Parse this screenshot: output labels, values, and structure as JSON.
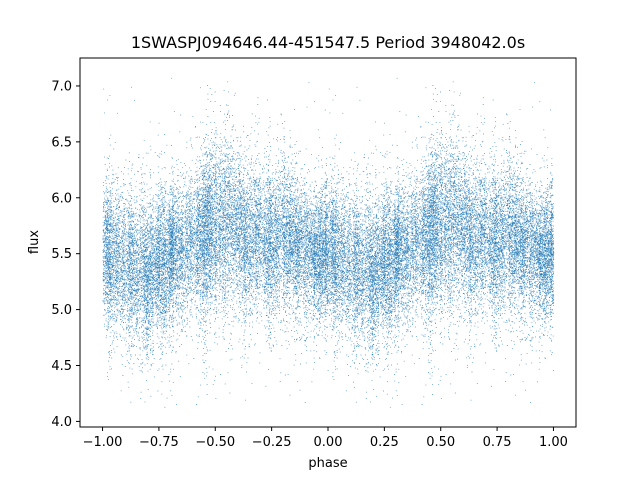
{
  "chart_data": {
    "type": "scatter",
    "title": "1SWASPJ094646.44-451547.5 Period 3948042.0s",
    "xlabel": "phase",
    "ylabel": "flux",
    "xlim": [
      -1.1,
      1.1
    ],
    "ylim": [
      3.95,
      7.25
    ],
    "x_ticks": [
      -1.0,
      -0.75,
      -0.5,
      -0.25,
      0.0,
      0.25,
      0.5,
      0.75,
      1.0
    ],
    "x_tick_labels": [
      "−1.00",
      "−0.75",
      "−0.50",
      "−0.25",
      "0.00",
      "0.25",
      "0.50",
      "0.75",
      "1.00"
    ],
    "y_ticks": [
      4.0,
      4.5,
      5.0,
      5.5,
      6.0,
      6.5,
      7.0
    ],
    "y_tick_labels": [
      "4.0",
      "4.5",
      "5.0",
      "5.5",
      "6.0",
      "6.5",
      "7.0"
    ],
    "grid": false,
    "marker_color": "#1f77b4",
    "phase_range": [
      -1.0,
      1.0
    ],
    "flux_profile": {
      "phase": [
        0.0,
        0.1,
        0.2,
        0.3,
        0.4,
        0.5,
        0.55,
        0.6,
        0.7,
        0.8,
        0.9,
        1.0
      ],
      "median_flux": [
        5.55,
        5.4,
        5.35,
        5.45,
        5.6,
        5.75,
        5.78,
        5.7,
        5.6,
        5.65,
        5.55,
        5.5
      ],
      "spread": [
        0.28,
        0.3,
        0.3,
        0.28,
        0.3,
        0.35,
        0.38,
        0.33,
        0.3,
        0.3,
        0.28,
        0.28
      ]
    },
    "flux_min": 4.1,
    "flux_max": 7.1,
    "approx_point_count": 20000
  }
}
